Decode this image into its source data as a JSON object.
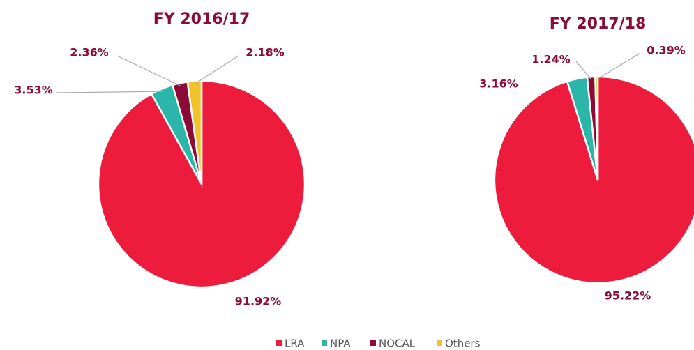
{
  "chart_data": [
    {
      "type": "pie",
      "title": "FY 2016/17",
      "categories": [
        "LRA",
        "NPA",
        "NOCAL",
        "Others"
      ],
      "values": [
        91.92,
        3.53,
        2.36,
        2.18
      ],
      "value_labels": [
        "91.92%",
        "3.53%",
        "2.36%",
        "2.18%"
      ],
      "colors": [
        "#ed1c3c",
        "#2cb5a9",
        "#8b0a36",
        "#f2c12e"
      ],
      "legend": "bottom"
    },
    {
      "type": "pie",
      "title": "FY 2017/18",
      "categories": [
        "LRA",
        "NPA",
        "NOCAL",
        "Others"
      ],
      "values": [
        95.22,
        3.16,
        1.24,
        0.39
      ],
      "value_labels": [
        "95.22%",
        "3.16%",
        "1.24%",
        "0.39%"
      ],
      "colors": [
        "#ed1c3c",
        "#2cb5a9",
        "#8b0a36",
        "#f2c12e"
      ],
      "legend": "bottom"
    }
  ]
}
